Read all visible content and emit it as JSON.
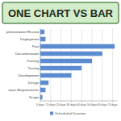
{
  "chart_data": {
    "type": "bar",
    "orientation": "horizontal",
    "title": "ONE CHART VS BAR",
    "categories": [
      "plementation Review",
      "Deployment",
      "Post",
      "Documentation",
      "Training",
      "Testing",
      "Development",
      "Design",
      "ware Requirements",
      "Scope"
    ],
    "series": [
      {
        "name": "Scheduled Duration",
        "color": "#5b8bd0",
        "values": [
          4,
          5,
          72,
          60,
          50,
          40,
          30,
          8,
          5,
          2
        ]
      }
    ],
    "xlim": [
      0,
      75
    ],
    "xticks": [
      {
        "value": 0,
        "label": "0 days"
      },
      {
        "value": 10,
        "label": "10 days"
      },
      {
        "value": 20,
        "label": "20 days"
      },
      {
        "value": 30,
        "label": "30 days"
      },
      {
        "value": 40,
        "label": "40 days"
      },
      {
        "value": 50,
        "label": "50 days"
      },
      {
        "value": 60,
        "label": "60 days"
      },
      {
        "value": 70,
        "label": "70 days"
      }
    ],
    "grid": true,
    "legend": "bottom"
  }
}
